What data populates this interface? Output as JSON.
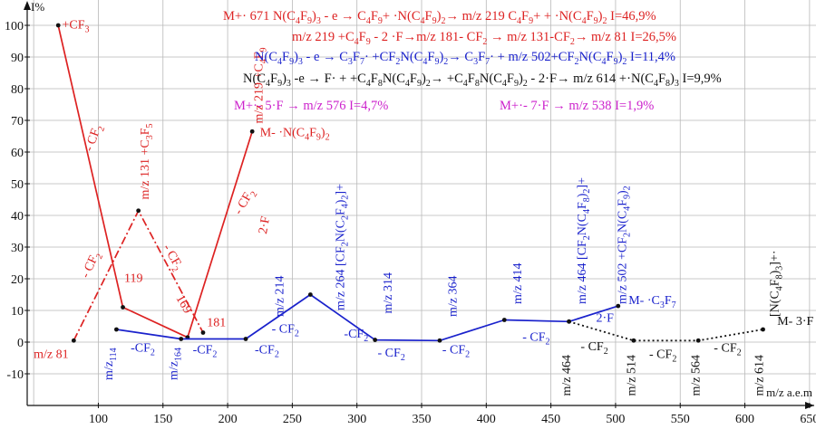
{
  "chart_data": {
    "type": "line",
    "ylabel": "I%",
    "xlabel": "m/z a.e.m",
    "xlim": [
      45,
      655
    ],
    "ylim": [
      -20,
      108
    ],
    "x_ticks": [
      100,
      150,
      200,
      250,
      300,
      350,
      400,
      450,
      500,
      550,
      600,
      650
    ],
    "y_ticks": [
      -10,
      0,
      10,
      20,
      30,
      40,
      50,
      60,
      70,
      80,
      90,
      100
    ],
    "grid": true,
    "series": [
      {
        "color": "#dd2222",
        "style": "solid",
        "points": [
          [
            69,
            100
          ],
          [
            119,
            11
          ],
          [
            169,
            1.5
          ],
          [
            219,
            66.5
          ]
        ]
      },
      {
        "color": "#dd2222",
        "style": "dashdot",
        "points": [
          [
            81,
            0.5
          ],
          [
            131,
            41.5
          ],
          [
            181,
            3
          ]
        ]
      },
      {
        "color": "#1a22cc",
        "style": "solid",
        "points": [
          [
            114,
            4
          ],
          [
            164,
            1
          ],
          [
            214,
            1
          ],
          [
            264,
            15
          ],
          [
            314,
            0.7
          ],
          [
            364,
            0.5
          ],
          [
            414,
            7
          ],
          [
            464,
            6.5
          ],
          [
            502,
            11.4
          ]
        ]
      },
      {
        "color": "#111111",
        "style": "dotted",
        "points": [
          [
            464,
            6.5
          ],
          [
            514,
            0.5
          ],
          [
            564,
            0.5
          ],
          [
            614,
            4
          ]
        ]
      }
    ],
    "annotations": [
      {
        "text": "+CF3",
        "color": "#dd2222",
        "x": 72,
        "y": 99
      },
      {
        "text": "- CF2",
        "color": "#dd2222",
        "x": 95,
        "y": 60,
        "rotate": -70
      },
      {
        "text": "- CF2",
        "color": "#dd2222",
        "x": 92,
        "y": 20,
        "rotate": -65
      },
      {
        "text": "m/z 81",
        "color": "#dd2222",
        "x": 50,
        "y": -5
      },
      {
        "text": "119",
        "color": "#dd2222",
        "x": 120,
        "y": 19
      },
      {
        "text": "m/z 131 +C3F5",
        "color": "#dd2222",
        "x": 139,
        "y": 45,
        "rotate": -90
      },
      {
        "text": "- CF2",
        "color": "#dd2222",
        "x": 150,
        "y": 30,
        "rotate": 60
      },
      {
        "text": "169",
        "color": "#dd2222",
        "x": 160,
        "y": 14,
        "rotate": 60
      },
      {
        "text": "181",
        "color": "#dd2222",
        "x": 184,
        "y": 5
      },
      {
        "text": "- CF2",
        "color": "#dd2222",
        "x": 210,
        "y": 40,
        "rotate": -60
      },
      {
        "text": "2·F",
        "color": "#dd2222",
        "x": 230,
        "y": 34,
        "rotate": -80
      },
      {
        "text": "m/z 219 +C4F9",
        "color": "#dd2222",
        "x": 227,
        "y": 69,
        "rotate": -90
      },
      {
        "text": "M- ·N(C4F9)2",
        "color": "#dd2222",
        "x": 225,
        "y": 65
      },
      {
        "text": "m/z114",
        "color": "#1a22cc",
        "x": 111,
        "y": -12,
        "rotate": -90
      },
      {
        "text": "-CF2",
        "color": "#1a22cc",
        "x": 125,
        "y": -3
      },
      {
        "text": "m/z164",
        "color": "#1a22cc",
        "x": 161,
        "y": -12,
        "rotate": -90
      },
      {
        "text": "-CF2",
        "color": "#1a22cc",
        "x": 173,
        "y": -3.5
      },
      {
        "text": "-CF2",
        "color": "#1a22cc",
        "x": 221,
        "y": -3.5
      },
      {
        "text": "m/z 214",
        "color": "#1a22cc",
        "x": 243,
        "y": 8,
        "rotate": -90
      },
      {
        "text": "- CF2",
        "color": "#1a22cc",
        "x": 234,
        "y": 3
      },
      {
        "text": "m/z 264 [CF2N(C2F4)2]+",
        "color": "#1a22cc",
        "x": 290,
        "y": 10,
        "rotate": -90
      },
      {
        "text": "-CF2",
        "color": "#1a22cc",
        "x": 290,
        "y": 1.5
      },
      {
        "text": "m/z 314",
        "color": "#1a22cc",
        "x": 327,
        "y": 9,
        "rotate": -90
      },
      {
        "text": "- CF2",
        "color": "#1a22cc",
        "x": 316,
        "y": -4.5
      },
      {
        "text": "m/z 364",
        "color": "#1a22cc",
        "x": 377,
        "y": 8,
        "rotate": -90
      },
      {
        "text": "- CF2",
        "color": "#1a22cc",
        "x": 366,
        "y": -3.5
      },
      {
        "text": "m/z 414",
        "color": "#1a22cc",
        "x": 427,
        "y": 12,
        "rotate": -90
      },
      {
        "text": "- CF2",
        "color": "#1a22cc",
        "x": 428,
        "y": 0.5
      },
      {
        "text": "m/z 464 [CF2N(C4F8)2]+",
        "color": "#1a22cc",
        "x": 477,
        "y": 12,
        "rotate": -90
      },
      {
        "text": "m/z 502 +CF2N(C4F9)2",
        "color": "#1a22cc",
        "x": 508,
        "y": 12,
        "rotate": -90
      },
      {
        "text": "M- ·C3F7",
        "color": "#1a22cc",
        "x": 510,
        "y": 12
      },
      {
        "text": "2·F",
        "color": "#1a22cc",
        "x": 485,
        "y": 6.5
      },
      {
        "text": "m/z 464",
        "color": "#111111",
        "x": 465,
        "y": -17,
        "rotate": -90
      },
      {
        "text": "- CF2",
        "color": "#111111",
        "x": 473,
        "y": -2.5
      },
      {
        "text": "m/z 514",
        "color": "#111111",
        "x": 515,
        "y": -17,
        "rotate": -90
      },
      {
        "text": "- CF2",
        "color": "#111111",
        "x": 526,
        "y": -5
      },
      {
        "text": "m/z 564",
        "color": "#111111",
        "x": 565,
        "y": -17,
        "rotate": -90
      },
      {
        "text": "- CF2",
        "color": "#111111",
        "x": 576,
        "y": -3
      },
      {
        "text": "m/z 614",
        "color": "#111111",
        "x": 614,
        "y": -17,
        "rotate": -90
      },
      {
        "text": "[N(C4F8)3]+·",
        "color": "#111111",
        "x": 626,
        "y": 8,
        "rotate": -90
      },
      {
        "text": "M- 3·F",
        "color": "#111111",
        "x": 625,
        "y": 5.5
      }
    ],
    "equations": [
      {
        "text": "M+· 671  N(C4F9)3 - e → C4F9+ ·N(C4F9)2→ m/z 219 C4F9+  + ·N(C4F9)2    I=46,9%",
        "color": "#dd2222"
      },
      {
        "text": "m/z 219 +C4F9 - 2 ·F→m/z 181- CF2 → m/z 131-CF2→ m/z 81  I=26,5%",
        "color": "#dd2222"
      },
      {
        "text": "N(C4F9)3 - e → C3F7· +CF2N(C4F9)2→ C3F7· + m/z 502+CF2N(C4F9)2    I=11,4%",
        "color": "#1a22cc"
      },
      {
        "text": "N(C4F9)3 -e → F·  +  +C4F8N(C4F9)2→ +C4F8N(C4F9)2 - 2·F→ m/z 614 +·N(C4F8)3  I=9,9%",
        "color": "#111111"
      },
      {
        "text": "M+·- 5·F → m/z 576  I=4,7%",
        "color": "#cc22cc"
      },
      {
        "text": "M+·- 7·F → m/z 538   I=1,9%",
        "color": "#cc22cc"
      }
    ]
  }
}
